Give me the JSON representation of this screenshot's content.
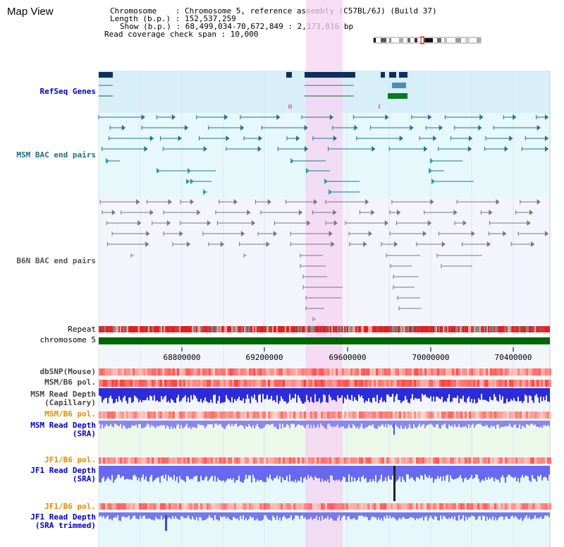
{
  "page_title": "Map View",
  "info": {
    "chromosome": "Chromosome    : Chromosome 5, reference assembly (C57BL/6J) (Build 37)",
    "length": "Length (b.p.) : 152,537,259",
    "show": "Show (b.p.) : 68,499,034-70,672,849 : 2,173,816 bp",
    "coverage": "Read coverage check span : 10,000"
  },
  "tracks": {
    "refseq": "RefSeq Genes",
    "msm_bac": "MSM BAC end pairs",
    "b6n_bac": "B6N BAC end pairs",
    "repeat": "Repeat",
    "chromosome": "chromosome 5",
    "dbsnp": "dbSNP(Mouse)",
    "msm_b6_pol_1": "MSM/B6 pol.",
    "msm_depth_cap_1": "MSM Read Depth",
    "msm_depth_cap_2": "(Capillary)",
    "msm_b6_pol_2": "MSM/B6 pol.",
    "msm_depth_sra_1": "MSM Read Depth",
    "msm_depth_sra_2": "(SRA)",
    "jf1_b6_pol_1": "JF1/B6 pol.",
    "jf1_depth_sra_1": "JF1 Read Depth",
    "jf1_depth_sra_2": "(SRA)",
    "jf1_b6_pol_2": "JF1/B6 pol.",
    "jf1_depth_trim_1": "JF1 Read Depth",
    "jf1_depth_trim_2": "(SRA trimmed)"
  },
  "axis_ticks": [
    "68800000",
    "69200000",
    "69600000",
    "70000000",
    "70400000"
  ],
  "colors": {
    "refseq_bg": "#d8eef9",
    "msm_bg": "#e6f8fa",
    "b6n_bg": "#f4f4fc",
    "highlight": "#f6d3f2",
    "chromosome": "#006600",
    "depth_blue": "#2b2bd9",
    "depth_light": "#8888f0"
  }
}
